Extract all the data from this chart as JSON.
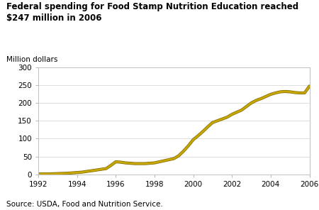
{
  "title": "Federal spending for Food Stamp Nutrition Education reached\n$247 million in 2006",
  "ylabel": "Million dollars",
  "source": "Source: USDA, Food and Nutrition Service.",
  "xlim": [
    1992,
    2006
  ],
  "ylim": [
    0,
    300
  ],
  "yticks": [
    0,
    50,
    100,
    150,
    200,
    250,
    300
  ],
  "xticks": [
    1992,
    1994,
    1996,
    1998,
    2000,
    2002,
    2004,
    2006
  ],
  "line_color": "#C8A800",
  "line_color2": "#7A6500",
  "background_color": "#ffffff",
  "plot_bg_color": "#ffffff",
  "border_color": "#c0c0c0",
  "years": [
    1992,
    1992.5,
    1993,
    1993.5,
    1994,
    1994.25,
    1994.5,
    1994.75,
    1995,
    1995.25,
    1995.5,
    1995.75,
    1996,
    1996.25,
    1996.5,
    1996.75,
    1997,
    1997.25,
    1997.5,
    1997.75,
    1998,
    1998.25,
    1998.5,
    1998.75,
    1999,
    1999.25,
    1999.5,
    1999.75,
    2000,
    2000.25,
    2000.5,
    2000.75,
    2001,
    2001.25,
    2001.5,
    2001.75,
    2002,
    2002.25,
    2002.5,
    2002.75,
    2003,
    2003.25,
    2003.5,
    2003.75,
    2004,
    2004.25,
    2004.5,
    2004.75,
    2005,
    2005.25,
    2005.5,
    2005.75,
    2006
  ],
  "values": [
    1,
    1,
    2,
    3,
    5,
    6,
    8,
    10,
    12,
    14,
    16,
    25,
    35,
    34,
    32,
    31,
    30,
    30,
    30,
    31,
    32,
    35,
    38,
    41,
    44,
    52,
    65,
    80,
    97,
    108,
    120,
    133,
    145,
    150,
    155,
    160,
    168,
    174,
    180,
    190,
    200,
    207,
    212,
    218,
    224,
    228,
    231,
    232,
    231,
    229,
    228,
    228,
    247
  ]
}
